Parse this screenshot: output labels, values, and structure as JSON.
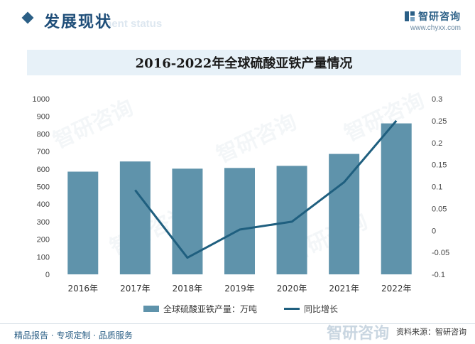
{
  "header": {
    "section_title": "发展现状",
    "section_subtitle": "ment status",
    "brand_name": "智研咨询",
    "brand_url": "www.chyxx.com"
  },
  "chart_data": {
    "type": "bar+line",
    "title": "2016-2022年全球硫酸亚铁产量情况",
    "categories": [
      "2016年",
      "2017年",
      "2018年",
      "2019年",
      "2020年",
      "2021年",
      "2022年"
    ],
    "series": [
      {
        "name": "全球硫酸亚铁产量：万吨",
        "type": "bar",
        "axis": "left",
        "color": "#5f93ab",
        "values": [
          585,
          643,
          602,
          606,
          618,
          686,
          860
        ]
      },
      {
        "name": "同比增长",
        "type": "line",
        "axis": "right",
        "color": "#1f5f7f",
        "values": [
          null,
          0.092,
          -0.062,
          0.002,
          0.02,
          0.11,
          0.25
        ]
      }
    ],
    "y_left": {
      "min": 0,
      "max": 1000,
      "step": 100
    },
    "y_right": {
      "min": -0.1,
      "max": 0.3,
      "step": 0.05
    },
    "y_right_ticks": [
      "0.3",
      "0.25",
      "0.2",
      "0.15",
      "0.1",
      "0.05",
      "0",
      "-0.05",
      "-0.1"
    ],
    "grid": false,
    "legend": "bottom"
  },
  "footer": {
    "left_text": "精品报告 · 专项定制 · 品质服务",
    "source_label": "资料来源：",
    "source_value": "智研咨询"
  },
  "watermark_text": "智研咨询"
}
